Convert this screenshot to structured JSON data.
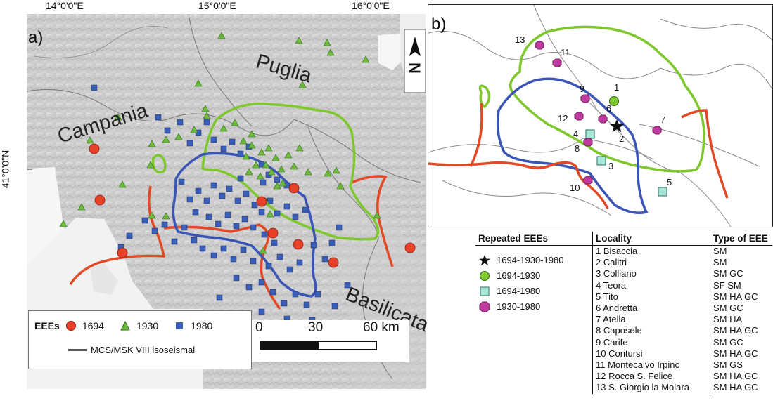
{
  "map_a": {
    "panel_label": "a)",
    "top_ticks": [
      "14°0'0\"E",
      "15°0'0\"E",
      "16°0'0\"E"
    ],
    "left_tick": "41°0'0\"N",
    "regions": [
      "Campania",
      "Puglia",
      "Basilicata"
    ],
    "north_arrow": "N",
    "legend": {
      "title": "EEEs",
      "items": [
        {
          "label": "1694",
          "symbol": "red-circle",
          "color": "#e8412a"
        },
        {
          "label": "1930",
          "symbol": "green-triangle",
          "color": "#6dbb3c"
        },
        {
          "label": "1980",
          "symbol": "blue-square",
          "color": "#3a5fb8"
        }
      ],
      "line_label": "MCS/MSK VIII isoseismal"
    },
    "scale": {
      "ticks": [
        "0",
        "30",
        "60 km"
      ]
    }
  },
  "map_b": {
    "panel_label": "b)",
    "localities": [
      "1",
      "2",
      "3",
      "4",
      "5",
      "6",
      "7",
      "8",
      "9",
      "10",
      "11",
      "12",
      "13"
    ]
  },
  "table": {
    "headers": [
      "Repeated EEEs",
      "Locality",
      "Type of EEE"
    ],
    "repeated": [
      {
        "label": "1694-1930-1980",
        "symbol": "black-star"
      },
      {
        "label": "1694-1930",
        "symbol": "green-circle"
      },
      {
        "label": "1694-1980",
        "symbol": "cyan-square"
      },
      {
        "label": "1930-1980",
        "symbol": "magenta-octagon"
      }
    ],
    "rows": [
      {
        "locality": "1 Bisaccia",
        "type": "SM"
      },
      {
        "locality": "2 Calitri",
        "type": "SM"
      },
      {
        "locality": "3 Colliano",
        "type": "SM GC"
      },
      {
        "locality": "4 Teora",
        "type": "SF SM"
      },
      {
        "locality": "5 Tito",
        "type": "SM HA GC"
      },
      {
        "locality": "6 Andretta",
        "type": "SM GC"
      },
      {
        "locality": "7 Atella",
        "type": "SM HA"
      },
      {
        "locality": "8 Caposele",
        "type": "SM HA GC"
      },
      {
        "locality": "9 Carife",
        "type": "SM GC"
      },
      {
        "locality": "10 Contursi",
        "type": "SM HA GC"
      },
      {
        "locality": "11 Montecalvo Irpino",
        "type": "SM GS"
      },
      {
        "locality": "12 Rocca S. Felice",
        "type": "SM HA GC"
      },
      {
        "locality": "13 S. Giorgio la Molara",
        "type": "SM HA GC"
      }
    ]
  }
}
